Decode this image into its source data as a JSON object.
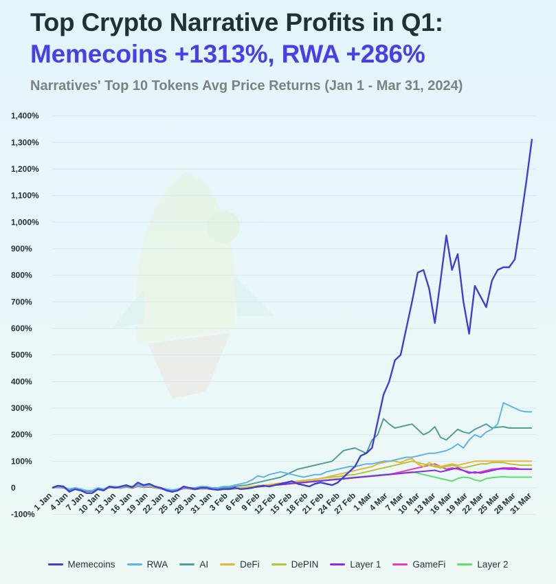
{
  "title_line1": "Top Crypto Narrative Profits in Q1:",
  "title_line2": "Memecoins +1313%, RWA +286%",
  "subtitle": "Narratives' Top 10 Tokens Avg Price Returns (Jan 1 - Mar 31, 2024)",
  "chart_data": {
    "type": "line",
    "title": "Top Crypto Narrative Profits in Q1: Memecoins +1313%, RWA +286%",
    "subtitle": "Narratives' Top 10 Tokens Avg Price Returns (Jan 1 - Mar 31, 2024)",
    "xlabel": "",
    "ylabel": "",
    "ylim": [
      -100,
      1400
    ],
    "yticks": [
      -100,
      0,
      100,
      200,
      300,
      400,
      500,
      600,
      700,
      800,
      900,
      1000,
      1100,
      1200,
      1300,
      1400
    ],
    "ytick_labels": [
      "-100%",
      "0",
      "100%",
      "200%",
      "300%",
      "400%",
      "500%",
      "600%",
      "700%",
      "800%",
      "900%",
      "1,000%",
      "1,100%",
      "1,200%",
      "1,300%",
      "1,400%"
    ],
    "xtick_labels": [
      "1 Jan",
      "4 Jan",
      "7 Jan",
      "10 Jan",
      "13 Jan",
      "16 Jan",
      "19 Jan",
      "22 Jan",
      "25 Jan",
      "28 Jan",
      "31 Jan",
      "3 Feb",
      "6 Feb",
      "9 Feb",
      "12 Feb",
      "15 Feb",
      "18 Feb",
      "21 Feb",
      "24 Feb",
      "27 Feb",
      "1 Mar",
      "4 Mar",
      "7 Mar",
      "10 Mar",
      "13 Mar",
      "16 Mar",
      "19 Mar",
      "22 Mar",
      "25 Mar",
      "28 Mar",
      "31 Mar"
    ],
    "grid": true,
    "legend_position": "bottom",
    "series": [
      {
        "name": "Memecoins",
        "color": "#3d3fd0",
        "values": [
          0,
          8,
          5,
          -15,
          -5,
          -10,
          -20,
          -20,
          -5,
          -10,
          5,
          0,
          5,
          10,
          2,
          20,
          10,
          15,
          5,
          0,
          -10,
          -15,
          -10,
          5,
          0,
          -5,
          0,
          0,
          -5,
          -8,
          -5,
          -5,
          0,
          -5,
          -3,
          0,
          5,
          8,
          5,
          10,
          15,
          20,
          25,
          15,
          10,
          5,
          15,
          20,
          15,
          10,
          20,
          40,
          60,
          80,
          120,
          130,
          150,
          250,
          350,
          400,
          480,
          500,
          600,
          700,
          810,
          820,
          750,
          620,
          780,
          950,
          820,
          880,
          700,
          580,
          760,
          720,
          680,
          780,
          820,
          830,
          830,
          860,
          1000,
          1150,
          1313
        ]
      },
      {
        "name": "RWA",
        "color": "#5fb3e0",
        "values": [
          0,
          5,
          3,
          -5,
          0,
          -5,
          -10,
          -10,
          0,
          -5,
          5,
          5,
          0,
          8,
          5,
          10,
          5,
          10,
          5,
          0,
          -5,
          -8,
          -5,
          0,
          0,
          0,
          5,
          5,
          0,
          0,
          5,
          5,
          10,
          15,
          20,
          30,
          45,
          40,
          50,
          55,
          60,
          55,
          50,
          45,
          40,
          45,
          50,
          50,
          60,
          65,
          70,
          75,
          80,
          80,
          85,
          90,
          90,
          95,
          100,
          100,
          105,
          110,
          115,
          115,
          120,
          125,
          130,
          130,
          135,
          140,
          150,
          165,
          150,
          180,
          200,
          190,
          210,
          220,
          240,
          320,
          310,
          300,
          290,
          286,
          286
        ]
      },
      {
        "name": "AI",
        "color": "#4e9e96",
        "values": [
          0,
          4,
          2,
          -8,
          -3,
          -6,
          -12,
          -12,
          -2,
          -6,
          3,
          3,
          2,
          5,
          2,
          12,
          6,
          10,
          3,
          0,
          -6,
          -10,
          -6,
          2,
          0,
          -2,
          2,
          2,
          -2,
          -3,
          0,
          0,
          5,
          8,
          10,
          15,
          20,
          25,
          30,
          35,
          40,
          50,
          60,
          70,
          75,
          80,
          85,
          90,
          95,
          100,
          120,
          140,
          145,
          150,
          140,
          130,
          180,
          200,
          260,
          240,
          225,
          230,
          235,
          240,
          220,
          200,
          210,
          230,
          190,
          180,
          200,
          220,
          210,
          205,
          220,
          230,
          240,
          225,
          228,
          230,
          225,
          225,
          225,
          225,
          225
        ]
      },
      {
        "name": "DeFi",
        "color": "#e9b43a",
        "values": [
          0,
          3,
          1,
          -8,
          -3,
          -6,
          -12,
          -12,
          -3,
          -6,
          2,
          2,
          0,
          4,
          0,
          8,
          3,
          6,
          1,
          -2,
          -8,
          -12,
          -8,
          0,
          -2,
          -5,
          -2,
          -2,
          -5,
          -6,
          -4,
          -4,
          -2,
          0,
          2,
          5,
          8,
          10,
          12,
          15,
          18,
          20,
          22,
          25,
          28,
          30,
          32,
          35,
          40,
          45,
          50,
          55,
          60,
          65,
          70,
          75,
          80,
          90,
          95,
          100,
          100,
          95,
          105,
          110,
          90,
          80,
          95,
          85,
          80,
          85,
          90,
          85,
          90,
          95,
          100,
          100,
          100,
          100,
          100,
          100,
          100,
          100,
          100,
          100,
          100
        ]
      },
      {
        "name": "DePIN",
        "color": "#b4c43a",
        "values": [
          0,
          3,
          1,
          -8,
          -3,
          -6,
          -12,
          -12,
          -3,
          -6,
          2,
          2,
          0,
          4,
          0,
          8,
          3,
          6,
          1,
          -2,
          -8,
          -12,
          -8,
          0,
          -2,
          -5,
          -2,
          -2,
          -5,
          -6,
          -4,
          -4,
          -2,
          0,
          2,
          5,
          8,
          10,
          12,
          15,
          18,
          20,
          22,
          25,
          28,
          30,
          32,
          35,
          38,
          40,
          42,
          45,
          48,
          50,
          55,
          60,
          65,
          70,
          75,
          80,
          85,
          90,
          95,
          100,
          95,
          90,
          85,
          80,
          75,
          80,
          85,
          80,
          75,
          80,
          85,
          90,
          90,
          95,
          95,
          95,
          90,
          88,
          85,
          85,
          85
        ]
      },
      {
        "name": "Layer 1",
        "color": "#8a2be2",
        "values": [
          0,
          2,
          0,
          -9,
          -4,
          -7,
          -13,
          -13,
          -4,
          -7,
          1,
          1,
          -1,
          3,
          -1,
          6,
          2,
          4,
          0,
          -3,
          -9,
          -13,
          -9,
          -2,
          -3,
          -6,
          -3,
          -3,
          -6,
          -7,
          -5,
          -5,
          -3,
          -1,
          0,
          2,
          4,
          6,
          8,
          10,
          12,
          14,
          16,
          18,
          20,
          22,
          24,
          26,
          28,
          30,
          32,
          34,
          36,
          38,
          40,
          42,
          44,
          46,
          48,
          50,
          52,
          54,
          56,
          58,
          60,
          62,
          64,
          66,
          60,
          65,
          70,
          75,
          65,
          55,
          60,
          55,
          60,
          65,
          70,
          72,
          70,
          70,
          70,
          70,
          70
        ]
      },
      {
        "name": "GameFi",
        "color": "#e63ac6",
        "values": [
          0,
          2,
          0,
          -9,
          -4,
          -7,
          -13,
          -13,
          -4,
          -7,
          1,
          1,
          -1,
          3,
          -1,
          6,
          2,
          4,
          0,
          -3,
          -9,
          -13,
          -9,
          -2,
          -3,
          -6,
          -3,
          -3,
          -6,
          -7,
          -5,
          -5,
          -3,
          -1,
          0,
          2,
          4,
          6,
          8,
          10,
          12,
          14,
          16,
          18,
          20,
          22,
          24,
          26,
          28,
          30,
          32,
          34,
          36,
          38,
          40,
          42,
          44,
          46,
          48,
          50,
          55,
          60,
          65,
          70,
          75,
          80,
          85,
          90,
          80,
          70,
          75,
          70,
          65,
          60,
          55,
          60,
          65,
          70,
          72,
          75,
          75,
          75,
          70,
          70,
          70
        ]
      },
      {
        "name": "Layer 2",
        "color": "#5fdc6a",
        "values": [
          0,
          3,
          1,
          -8,
          -3,
          -6,
          -12,
          -12,
          -3,
          -6,
          2,
          2,
          0,
          4,
          0,
          8,
          3,
          6,
          1,
          -2,
          -8,
          -12,
          -8,
          0,
          -2,
          -5,
          -2,
          -2,
          -5,
          -6,
          -4,
          -4,
          -2,
          0,
          2,
          4,
          6,
          8,
          10,
          12,
          14,
          16,
          18,
          20,
          22,
          24,
          26,
          28,
          30,
          32,
          34,
          36,
          38,
          40,
          42,
          44,
          46,
          48,
          50,
          52,
          54,
          56,
          58,
          60,
          55,
          50,
          45,
          40,
          35,
          30,
          25,
          35,
          40,
          38,
          30,
          25,
          35,
          38,
          40,
          42,
          40,
          40,
          40,
          40,
          40
        ]
      }
    ]
  }
}
